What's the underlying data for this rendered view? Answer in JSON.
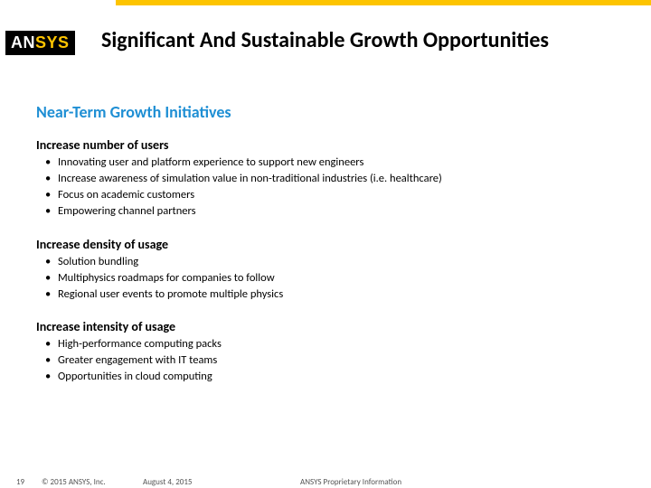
{
  "logo": {
    "an": "AN",
    "sys": "SYS"
  },
  "title": "Significant And Sustainable Growth Opportunities",
  "subtitle": "Near-Term Growth Initiatives",
  "sections": [
    {
      "heading": "Increase number of users",
      "bullets": [
        "Innovating user and platform experience to support new engineers",
        "Increase awareness of simulation value in non-traditional industries (i.e. healthcare)",
        "Focus on academic customers",
        "Empowering channel partners"
      ]
    },
    {
      "heading": "Increase density of usage",
      "bullets": [
        "Solution bundling",
        "Multiphysics roadmaps for companies to follow",
        "Regional user events to promote multiple physics"
      ]
    },
    {
      "heading": "Increase intensity of usage",
      "bullets": [
        "High-performance computing packs",
        "Greater engagement with IT teams",
        "Opportunities in cloud computing"
      ]
    }
  ],
  "footer": {
    "page": "19",
    "copyright": "© 2015 ANSYS, Inc.",
    "date": "August 4, 2015",
    "confidential": "ANSYS Proprietary Information"
  },
  "colors": {
    "accent_yellow": "#fdc400",
    "subtitle_blue": "#1f8fd4",
    "text_black": "#000000",
    "footer_gray": "#555555",
    "background": "#ffffff"
  }
}
